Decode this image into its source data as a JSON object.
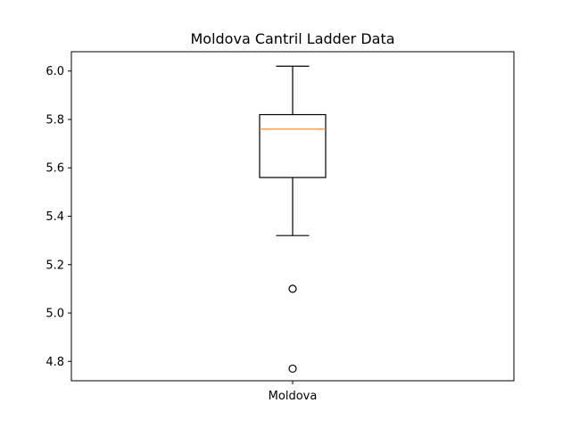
{
  "chart_data": {
    "type": "box",
    "title": "Moldova Cantril Ladder Data",
    "xlabel": "",
    "ylabel": "",
    "categories": [
      "Moldova"
    ],
    "ylim": [
      4.72,
      6.08
    ],
    "yticks": [
      4.8,
      5.0,
      5.2,
      5.4,
      5.6,
      5.8,
      6.0
    ],
    "ytick_labels": [
      "4.8",
      "5.0",
      "5.2",
      "5.4",
      "5.6",
      "5.8",
      "6.0"
    ],
    "series": [
      {
        "category": "Moldova",
        "whisker_low": 5.32,
        "q1": 5.56,
        "median": 5.76,
        "q3": 5.82,
        "whisker_high": 6.02,
        "outliers": [
          5.1,
          4.77
        ]
      }
    ],
    "grid": false,
    "colors": {
      "median": "#ff7f0e",
      "box": "#000000"
    }
  }
}
